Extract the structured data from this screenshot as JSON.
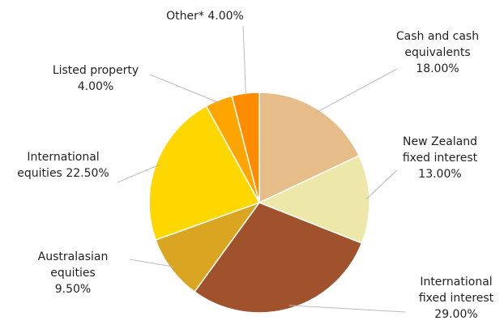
{
  "chart_data": {
    "type": "pie",
    "categories": [
      "Cash and cash equivalents",
      "New Zealand fixed interest",
      "International fixed interest",
      "Australasian equities",
      "International equities",
      "Listed property",
      "Other*"
    ],
    "values": [
      18,
      13,
      29,
      9.5,
      22.5,
      4,
      4
    ],
    "value_labels": [
      "18.00%",
      "13.00%",
      "29.00%",
      "9.50%",
      "22.50%",
      "4.00%",
      "4.00%"
    ],
    "colors": [
      "#e6bd88",
      "#ede7a9",
      "#a0522d",
      "#daa520",
      "#ffd700",
      "#ffa500",
      "#ff8c00"
    ]
  }
}
